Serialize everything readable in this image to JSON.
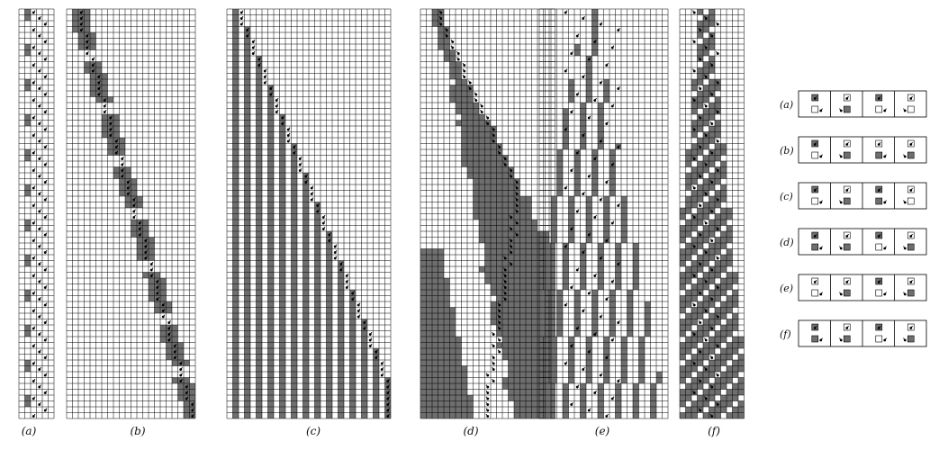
{
  "panels": [
    {
      "id": "a",
      "label": "(a)"
    },
    {
      "id": "b",
      "label": "(b)"
    },
    {
      "id": "c",
      "label": "(c)"
    },
    {
      "id": "d",
      "label": "(d)"
    },
    {
      "id": "e",
      "label": "(e)"
    },
    {
      "id": "f",
      "label": "(f)"
    }
  ],
  "rules": [
    {
      "id": "a",
      "label": "(a)"
    },
    {
      "id": "b",
      "label": "(b)"
    },
    {
      "id": "c",
      "label": "(c)"
    },
    {
      "id": "d",
      "label": "(d)"
    },
    {
      "id": "e",
      "label": "(e)"
    },
    {
      "id": "f",
      "label": "(f)"
    }
  ],
  "colors": {
    "cell_on": "#6e6e6e",
    "cell_off": "#ffffff",
    "grid": "#000000",
    "head": "#000000"
  },
  "icons": {
    "head": "arrow-head-icon",
    "cell": "grid-cell"
  }
}
